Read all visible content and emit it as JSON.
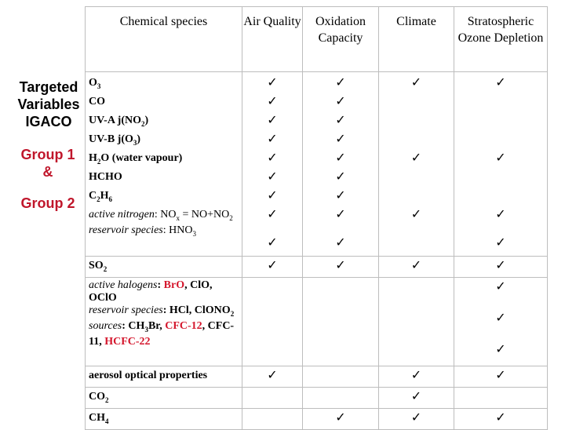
{
  "header": {
    "species": "Chemical species",
    "air_quality": "Air Quality",
    "oxidation": "Oxidation Capacity",
    "climate": "Climate",
    "ozone": "Stratospheric Ozone Depletion"
  },
  "side": {
    "targeted": "Targeted",
    "variables": "Variables",
    "igaco": "IGACO",
    "group1": "Group 1",
    "amp": "&",
    "group2": "Group 2"
  },
  "check_symbol": "✓",
  "rows": {
    "o3": "O3",
    "co": "CO",
    "uva": "UV-A j(NO2)",
    "uvb": "UV-B j(O3)",
    "h2o": "H2O (water vapour)",
    "hcho": "HCHO",
    "c2h6": "C2H6",
    "active_nitrogen_label": "active nitrogen",
    "active_nitrogen_val": ": NOx = NO+NO2",
    "reservoir_n_label": "reservoir species",
    "reservoir_n_val": ": HNO3",
    "so2": "SO2",
    "active_halogens_label": "active halogens",
    "halogens_sep": ": ",
    "bro": "BrO",
    "clo": ", ClO, OClO",
    "reservoir_h_label": "reservoir species",
    "reservoir_h_val": ": HCl, ClONO2",
    "sources_label": "sources",
    "sources_pre": ": CH3Br, ",
    "cfc12": "CFC-12",
    "cfc11": ", CFC-11, ",
    "hcfc22": "HCFC-22",
    "aerosol": "aerosol optical properties",
    "co2": "CO2",
    "ch4": "CH4"
  }
}
